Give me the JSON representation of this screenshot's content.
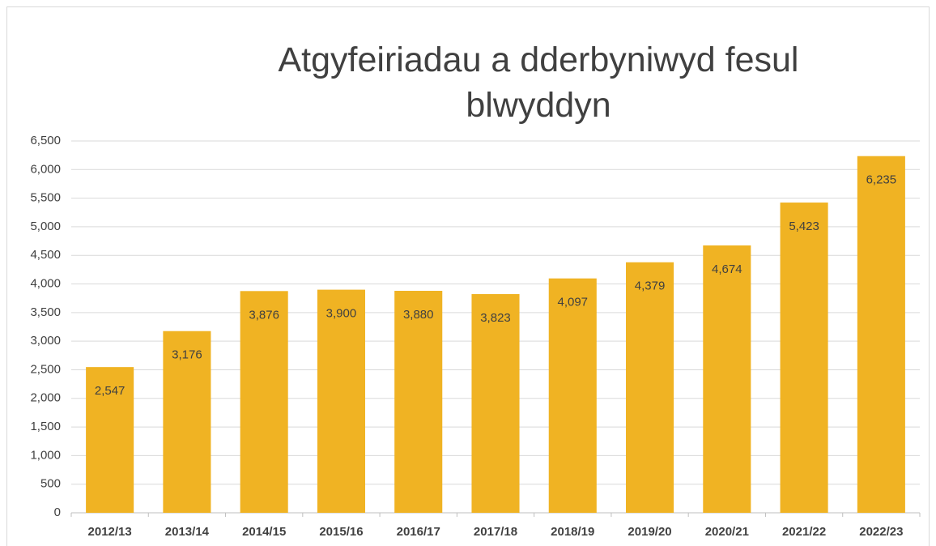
{
  "chart_data": {
    "type": "bar",
    "title": "Atgyfeiriadau a dderbyniwyd fesul blwyddyn",
    "categories": [
      "2012/13",
      "2013/14",
      "2014/15",
      "2015/16",
      "2016/17",
      "2017/18",
      "2018/19",
      "2019/20",
      "2020/21",
      "2021/22",
      "2022/23"
    ],
    "values": [
      2547,
      3176,
      3876,
      3900,
      3880,
      3823,
      4097,
      4379,
      4674,
      5423,
      6235
    ],
    "value_labels": [
      "2,547",
      "3,176",
      "3,876",
      "3,900",
      "3,880",
      "3,823",
      "4,097",
      "4,379",
      "4,674",
      "5,423",
      "6,235"
    ],
    "color": "#f0b323",
    "ylim": [
      0,
      6500
    ],
    "yticks": [
      0,
      500,
      {
        "value": 1000,
        "label": "1,000"
      },
      {
        "value": 1500,
        "label": "1,500"
      },
      {
        "value": 2000,
        "label": "2,000"
      },
      {
        "value": 2500,
        "label": "2,500"
      },
      {
        "value": 3000,
        "label": "3,000"
      },
      {
        "value": 3500,
        "label": "3,500"
      },
      {
        "value": 4000,
        "label": "4,000"
      },
      {
        "value": 4500,
        "label": "4,500"
      },
      {
        "value": 5000,
        "label": "5,000"
      },
      {
        "value": 5500,
        "label": "5,500"
      },
      {
        "value": 6000,
        "label": "6,000"
      },
      {
        "value": 6500,
        "label": "6,500"
      }
    ],
    "grid": true
  }
}
